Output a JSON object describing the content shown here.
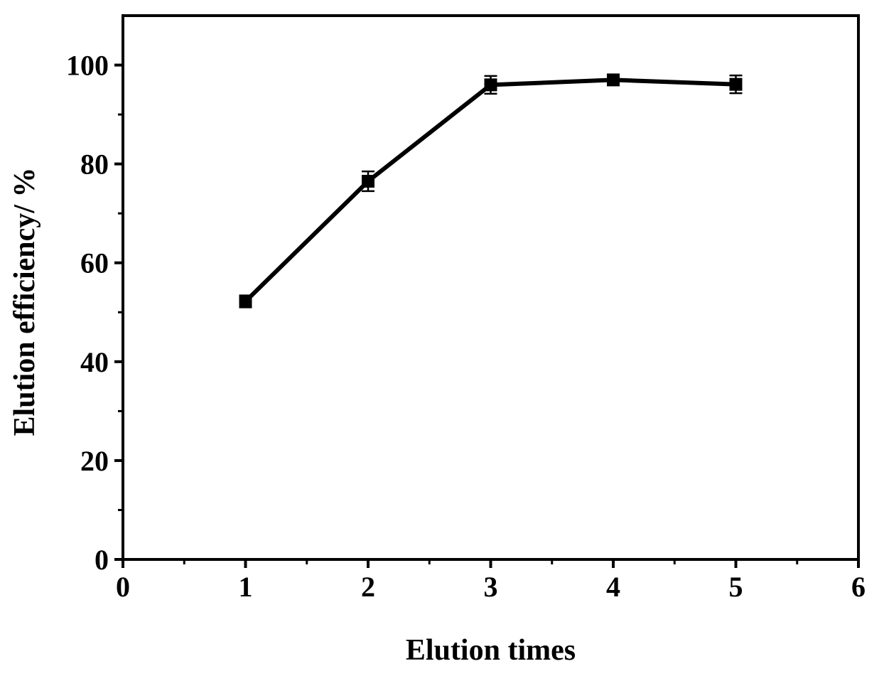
{
  "chart_data": {
    "type": "line",
    "title": "",
    "xlabel": "Elution times",
    "ylabel": "Elution efficiency/ %",
    "xlim": [
      0,
      6
    ],
    "ylim": [
      0,
      110
    ],
    "x_ticks": [
      0,
      1,
      2,
      3,
      4,
      5,
      6
    ],
    "y_ticks": [
      0,
      20,
      40,
      60,
      80,
      100
    ],
    "grid": false,
    "legend": "none",
    "series": [
      {
        "x": [
          1,
          2,
          3,
          4,
          5
        ],
        "y": [
          52.2,
          76.5,
          96.0,
          97.0,
          96.1
        ],
        "error": [
          1.2,
          2.0,
          1.8,
          0.8,
          1.8
        ],
        "color": "#000000",
        "marker": "square"
      }
    ]
  }
}
